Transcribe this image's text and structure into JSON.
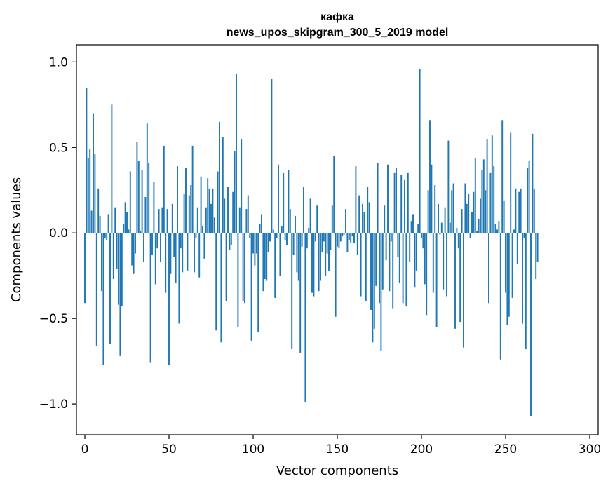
{
  "chart_data": {
    "type": "bar",
    "title": "кафка",
    "subtitle": "news_upos_skipgram_300_5_2019 model",
    "xlabel": "Vector components",
    "ylabel": "Components values",
    "xlim": [
      -5,
      305
    ],
    "ylim": [
      -1.18,
      1.1
    ],
    "xticks": [
      0,
      50,
      100,
      150,
      200,
      250,
      300
    ],
    "xtick_labels": [
      "0",
      "50",
      "100",
      "150",
      "200",
      "250",
      "300"
    ],
    "yticks": [
      -1.0,
      -0.5,
      0.0,
      0.5,
      1.0
    ],
    "ytick_labels": [
      "−1.0",
      "−0.5",
      "0.0",
      "0.5",
      "1.0"
    ],
    "bar_color": "#1f77b4",
    "values": [
      -0.41,
      0.85,
      0.44,
      0.49,
      0.13,
      0.7,
      0.46,
      -0.66,
      0.26,
      0.1,
      -0.34,
      -0.77,
      -0.03,
      -0.04,
      0.11,
      -0.65,
      0.75,
      -0.27,
      0.15,
      -0.21,
      -0.42,
      -0.72,
      -0.43,
      0.05,
      0.18,
      0.12,
      0.02,
      0.36,
      -0.19,
      -0.24,
      -0.12,
      0.53,
      0.42,
      0.01,
      0.37,
      -0.17,
      0.21,
      0.64,
      0.41,
      -0.76,
      -0.13,
      0.3,
      -0.3,
      -0.09,
      0.14,
      -0.17,
      0.15,
      0.51,
      -0.35,
      0.14,
      -0.77,
      -0.24,
      0.17,
      -0.14,
      -0.29,
      0.39,
      -0.53,
      -0.09,
      -0.23,
      0.23,
      0.38,
      -0.22,
      0.22,
      0.28,
      0.51,
      -0.23,
      -0.03,
      0.15,
      -0.26,
      0.33,
      0.04,
      -0.15,
      0.15,
      0.32,
      0.26,
      0.17,
      0.26,
      0.09,
      -0.57,
      0.36,
      0.65,
      -0.64,
      0.56,
      0.2,
      -0.4,
      0.27,
      -0.1,
      -0.07,
      0.24,
      0.48,
      0.93,
      -0.55,
      0.15,
      0.55,
      -0.4,
      -0.41,
      0.14,
      0.22,
      -0.03,
      -0.63,
      -0.12,
      -0.19,
      -0.12,
      -0.58,
      0.05,
      0.11,
      -0.34,
      -0.27,
      -0.28,
      -0.11,
      -0.05,
      0.9,
      0.02,
      -0.38,
      -0.03,
      0.4,
      -0.25,
      0.04,
      0.35,
      -0.04,
      -0.07,
      0.37,
      0.14,
      -0.68,
      -0.13,
      0.1,
      -0.23,
      -0.28,
      -0.7,
      -0.08,
      0.27,
      -0.99,
      -0.09,
      0.03,
      0.2,
      -0.35,
      -0.37,
      -0.05,
      0.16,
      -0.34,
      -0.28,
      -0.11,
      -0.05,
      -0.25,
      -0.12,
      -0.22,
      -0.1,
      0.16,
      0.45,
      -0.49,
      -0.08,
      -0.09,
      -0.05,
      -0.02,
      -0.01,
      0.14,
      -0.11,
      -0.04,
      -0.06,
      -0.02,
      -0.06,
      0.39,
      -0.13,
      0.22,
      -0.37,
      0.17,
      0.12,
      -0.4,
      0.27,
      0.18,
      -0.45,
      -0.64,
      -0.56,
      -0.31,
      0.41,
      -0.41,
      -0.69,
      -0.33,
      0.16,
      -0.16,
      0.4,
      -0.34,
      -0.05,
      -0.44,
      0.35,
      0.38,
      -0.14,
      -0.29,
      0.34,
      -0.41,
      0.31,
      -0.43,
      0.35,
      -0.17,
      0.07,
      0.11,
      -0.32,
      -0.22,
      0.05,
      0.96,
      -0.03,
      -0.09,
      -0.3,
      -0.48,
      0.25,
      0.66,
      0.4,
      -0.35,
      0.28,
      -0.55,
      0.17,
      -0.01,
      0.06,
      -0.33,
      0.15,
      -0.37,
      0.54,
      0.06,
      0.25,
      0.29,
      -0.56,
      0.03,
      -0.09,
      -0.52,
      0.14,
      -0.67,
      0.29,
      0.17,
      0.23,
      -0.03,
      0.12,
      0.24,
      0.44,
      0.01,
      0.08,
      0.2,
      0.37,
      0.43,
      0.25,
      0.55,
      -0.41,
      0.35,
      0.57,
      0.39,
      0.05,
      0.02,
      0.07,
      -0.74,
      0.66,
      0.19,
      -0.35,
      -0.54,
      -0.49,
      0.59,
      -0.38,
      0.02,
      0.26,
      -0.18,
      0.24,
      0.26,
      -0.53,
      -0.03,
      -0.68,
      0.38,
      0.42,
      -1.07,
      0.58,
      0.26,
      -0.27,
      -0.17
    ]
  }
}
